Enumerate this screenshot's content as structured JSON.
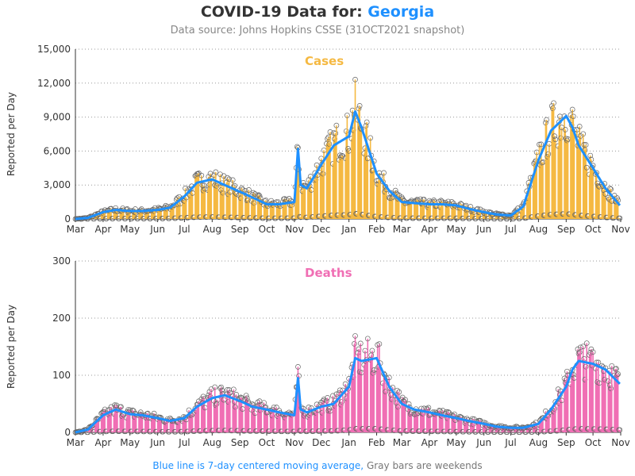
{
  "header": {
    "title_prefix": "COVID-19 Data for:",
    "state": "Georgia",
    "subtitle": "Data source: Johns Hopkins CSSE (31OCT2021 snapshot)"
  },
  "footnote": {
    "blue_part": "Blue line is 7-day centered moving average,",
    "gray_part": "Gray bars are weekends"
  },
  "colors": {
    "cases": "#f5b942",
    "deaths": "#f06fb4",
    "average": "#1e90ff",
    "marker": "#555555"
  },
  "chart_data": [
    {
      "type": "bar",
      "title": "Cases",
      "ylabel": "Reported per Day",
      "ylim": [
        0,
        15000
      ],
      "yticks": [
        0,
        3000,
        6000,
        9000,
        12000,
        15000
      ],
      "ytick_labels": [
        "0",
        "3,000",
        "6,000",
        "9,000",
        "12,000",
        "15,000"
      ],
      "month_labels": [
        "Mar",
        "Apr",
        "May",
        "Jun",
        "Jul",
        "Aug",
        "Sep",
        "Oct",
        "Nov",
        "Dec",
        "Jan",
        "Feb",
        "Mar",
        "Apr",
        "May",
        "Jun",
        "Jul",
        "Aug",
        "Sep",
        "Oct",
        "Nov"
      ],
      "grid": "horizontal dotted",
      "series": [
        {
          "name": "7-day centered moving average",
          "x": [
            "2020-03-01",
            "2020-03-15",
            "2020-04-01",
            "2020-04-15",
            "2020-05-01",
            "2020-05-15",
            "2020-06-01",
            "2020-06-15",
            "2020-07-01",
            "2020-07-15",
            "2020-08-01",
            "2020-08-15",
            "2020-09-01",
            "2020-09-15",
            "2020-10-01",
            "2020-10-15",
            "2020-11-01",
            "2020-11-05",
            "2020-11-08",
            "2020-11-15",
            "2020-12-01",
            "2020-12-15",
            "2021-01-01",
            "2021-01-08",
            "2021-01-15",
            "2021-02-01",
            "2021-02-15",
            "2021-03-01",
            "2021-03-15",
            "2021-04-01",
            "2021-04-15",
            "2021-05-01",
            "2021-05-15",
            "2021-06-01",
            "2021-06-15",
            "2021-07-01",
            "2021-07-15",
            "2021-08-01",
            "2021-08-15",
            "2021-09-01",
            "2021-09-08",
            "2021-09-15",
            "2021-10-01",
            "2021-10-15",
            "2021-10-31"
          ],
          "values": [
            0,
            100,
            600,
            800,
            700,
            700,
            800,
            1000,
            2000,
            3200,
            3500,
            3000,
            2400,
            1900,
            1300,
            1300,
            1500,
            6200,
            3000,
            2700,
            4800,
            6500,
            7300,
            9500,
            8100,
            4000,
            2500,
            1500,
            1400,
            1300,
            1300,
            1200,
            900,
            600,
            400,
            300,
            1100,
            5200,
            7800,
            9100,
            8100,
            6500,
            4500,
            2700,
            1200
          ]
        }
      ],
      "markers": "daily reported values shown as circles with vertical bars; weekend days plotted near zero"
    },
    {
      "type": "bar",
      "title": "Deaths",
      "ylabel": "Reported per Day",
      "ylim": [
        0,
        300
      ],
      "yticks": [
        0,
        100,
        200,
        300
      ],
      "ytick_labels": [
        "0",
        "100",
        "200",
        "300"
      ],
      "month_labels": [
        "Mar",
        "Apr",
        "May",
        "Jun",
        "Jul",
        "Aug",
        "Sep",
        "Oct",
        "Nov",
        "Dec",
        "Jan",
        "Feb",
        "Mar",
        "Apr",
        "May",
        "Jun",
        "Jul",
        "Aug",
        "Sep",
        "Oct",
        "Nov"
      ],
      "grid": "horizontal dotted",
      "series": [
        {
          "name": "7-day centered moving average",
          "x": [
            "2020-03-01",
            "2020-03-15",
            "2020-04-01",
            "2020-04-15",
            "2020-05-01",
            "2020-05-15",
            "2020-06-01",
            "2020-06-15",
            "2020-07-01",
            "2020-07-15",
            "2020-08-01",
            "2020-08-15",
            "2020-09-01",
            "2020-09-15",
            "2020-10-01",
            "2020-10-15",
            "2020-11-01",
            "2020-11-05",
            "2020-11-08",
            "2020-11-15",
            "2020-12-01",
            "2020-12-15",
            "2021-01-01",
            "2021-01-08",
            "2021-01-15",
            "2021-02-01",
            "2021-02-15",
            "2021-03-01",
            "2021-03-15",
            "2021-04-01",
            "2021-04-15",
            "2021-05-01",
            "2021-05-15",
            "2021-06-01",
            "2021-06-15",
            "2021-07-01",
            "2021-07-15",
            "2021-08-01",
            "2021-08-15",
            "2021-09-01",
            "2021-09-08",
            "2021-09-15",
            "2021-10-01",
            "2021-10-15",
            "2021-10-31"
          ],
          "values": [
            0,
            5,
            30,
            40,
            32,
            30,
            25,
            20,
            25,
            45,
            60,
            65,
            55,
            45,
            40,
            35,
            30,
            95,
            40,
            35,
            45,
            50,
            80,
            130,
            125,
            130,
            80,
            50,
            40,
            35,
            30,
            25,
            20,
            15,
            10,
            8,
            8,
            15,
            40,
            80,
            110,
            125,
            120,
            110,
            85
          ]
        }
      ],
      "markers": "daily reported values shown as circles with vertical bars; weekend days plotted near zero"
    }
  ]
}
